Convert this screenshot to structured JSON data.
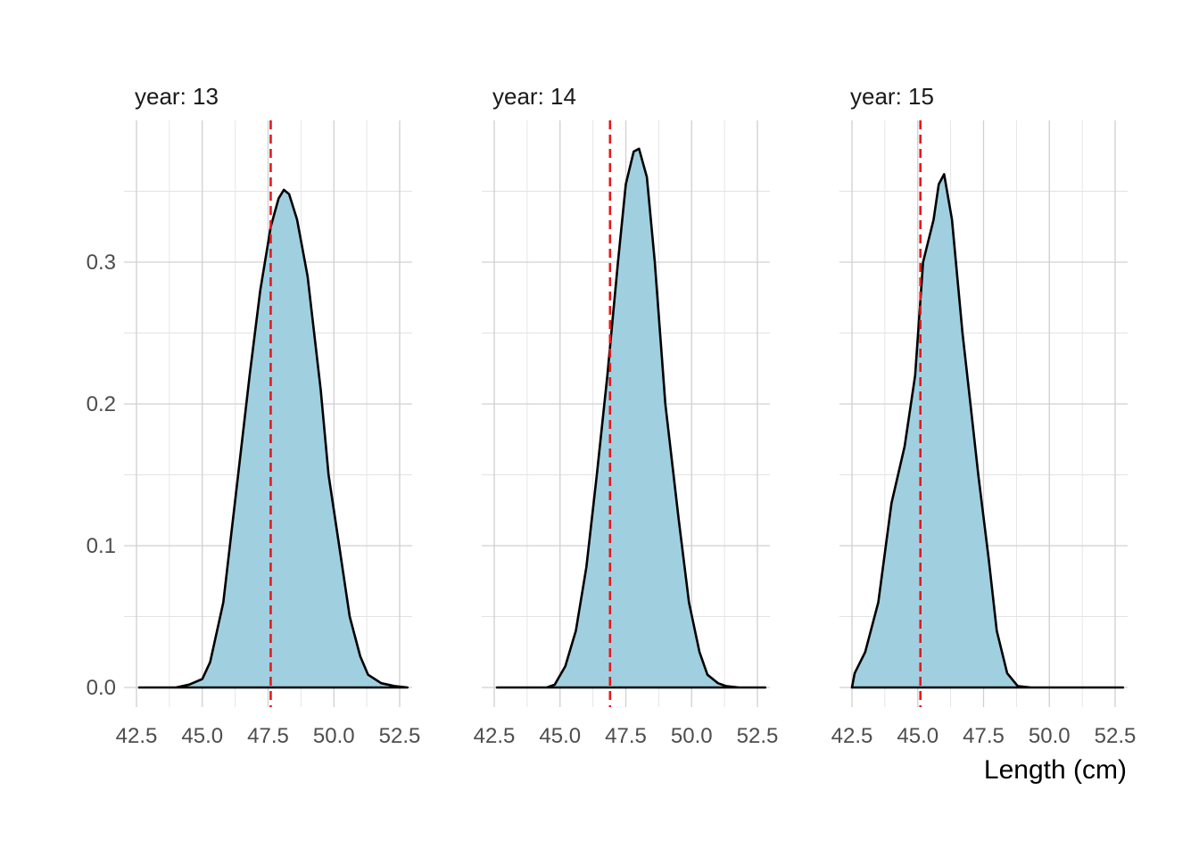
{
  "chart_data": {
    "type": "area",
    "subtype": "faceted-density",
    "xlabel": "Length (cm)",
    "ylabel": "",
    "xlim": [
      42.5,
      52.8
    ],
    "ylim": [
      0,
      0.38
    ],
    "x_ticks": [
      "42.5",
      "45.0",
      "47.5",
      "50.0",
      "52.5"
    ],
    "x_tick_values": [
      42.5,
      45.0,
      47.5,
      50.0,
      52.5
    ],
    "y_ticks": [
      "0.0",
      "0.1",
      "0.2",
      "0.3"
    ],
    "y_tick_values": [
      0.0,
      0.1,
      0.2,
      0.3
    ],
    "fill_color": "#a0d0e0",
    "line_color": "#000000",
    "reference_line_color": "#e41a1c",
    "grid": true,
    "facets": [
      {
        "title": "year: 13",
        "mean": 47.6,
        "x": [
          42.6,
          44.0,
          44.5,
          45.0,
          45.3,
          45.8,
          46.3,
          46.8,
          47.2,
          47.6,
          47.9,
          48.1,
          48.3,
          48.6,
          49.0,
          49.5,
          49.8,
          50.2,
          50.6,
          51.0,
          51.3,
          51.8,
          52.3,
          52.8
        ],
        "y": [
          0.0,
          0.0,
          0.002,
          0.006,
          0.018,
          0.06,
          0.14,
          0.22,
          0.28,
          0.325,
          0.345,
          0.351,
          0.348,
          0.33,
          0.29,
          0.21,
          0.15,
          0.1,
          0.05,
          0.022,
          0.009,
          0.003,
          0.001,
          0.0
        ]
      },
      {
        "title": "year: 14",
        "mean": 46.9,
        "x": [
          42.6,
          44.5,
          44.8,
          45.2,
          45.6,
          46.0,
          46.4,
          46.8,
          47.2,
          47.5,
          47.8,
          48.0,
          48.3,
          48.6,
          49.0,
          49.5,
          49.9,
          50.3,
          50.6,
          51.0,
          51.3,
          51.8,
          52.3,
          52.8
        ],
        "y": [
          0.0,
          0.0,
          0.002,
          0.015,
          0.04,
          0.085,
          0.15,
          0.22,
          0.3,
          0.355,
          0.378,
          0.38,
          0.36,
          0.3,
          0.2,
          0.12,
          0.06,
          0.025,
          0.009,
          0.003,
          0.001,
          0.0,
          0.0,
          0.0
        ]
      },
      {
        "title": "year: 15",
        "mean": 45.1,
        "x": [
          42.5,
          42.6,
          43.0,
          43.5,
          44.0,
          44.5,
          44.9,
          45.2,
          45.6,
          45.8,
          46.0,
          46.3,
          46.7,
          47.0,
          47.3,
          47.7,
          48.0,
          48.4,
          48.8,
          49.3,
          50.0,
          51.0,
          52.0,
          52.8
        ],
        "y": [
          0.0,
          0.01,
          0.025,
          0.06,
          0.13,
          0.17,
          0.22,
          0.3,
          0.33,
          0.355,
          0.362,
          0.33,
          0.25,
          0.2,
          0.15,
          0.09,
          0.04,
          0.01,
          0.001,
          0.0,
          0.0,
          0.0,
          0.0,
          0.0
        ]
      }
    ]
  }
}
